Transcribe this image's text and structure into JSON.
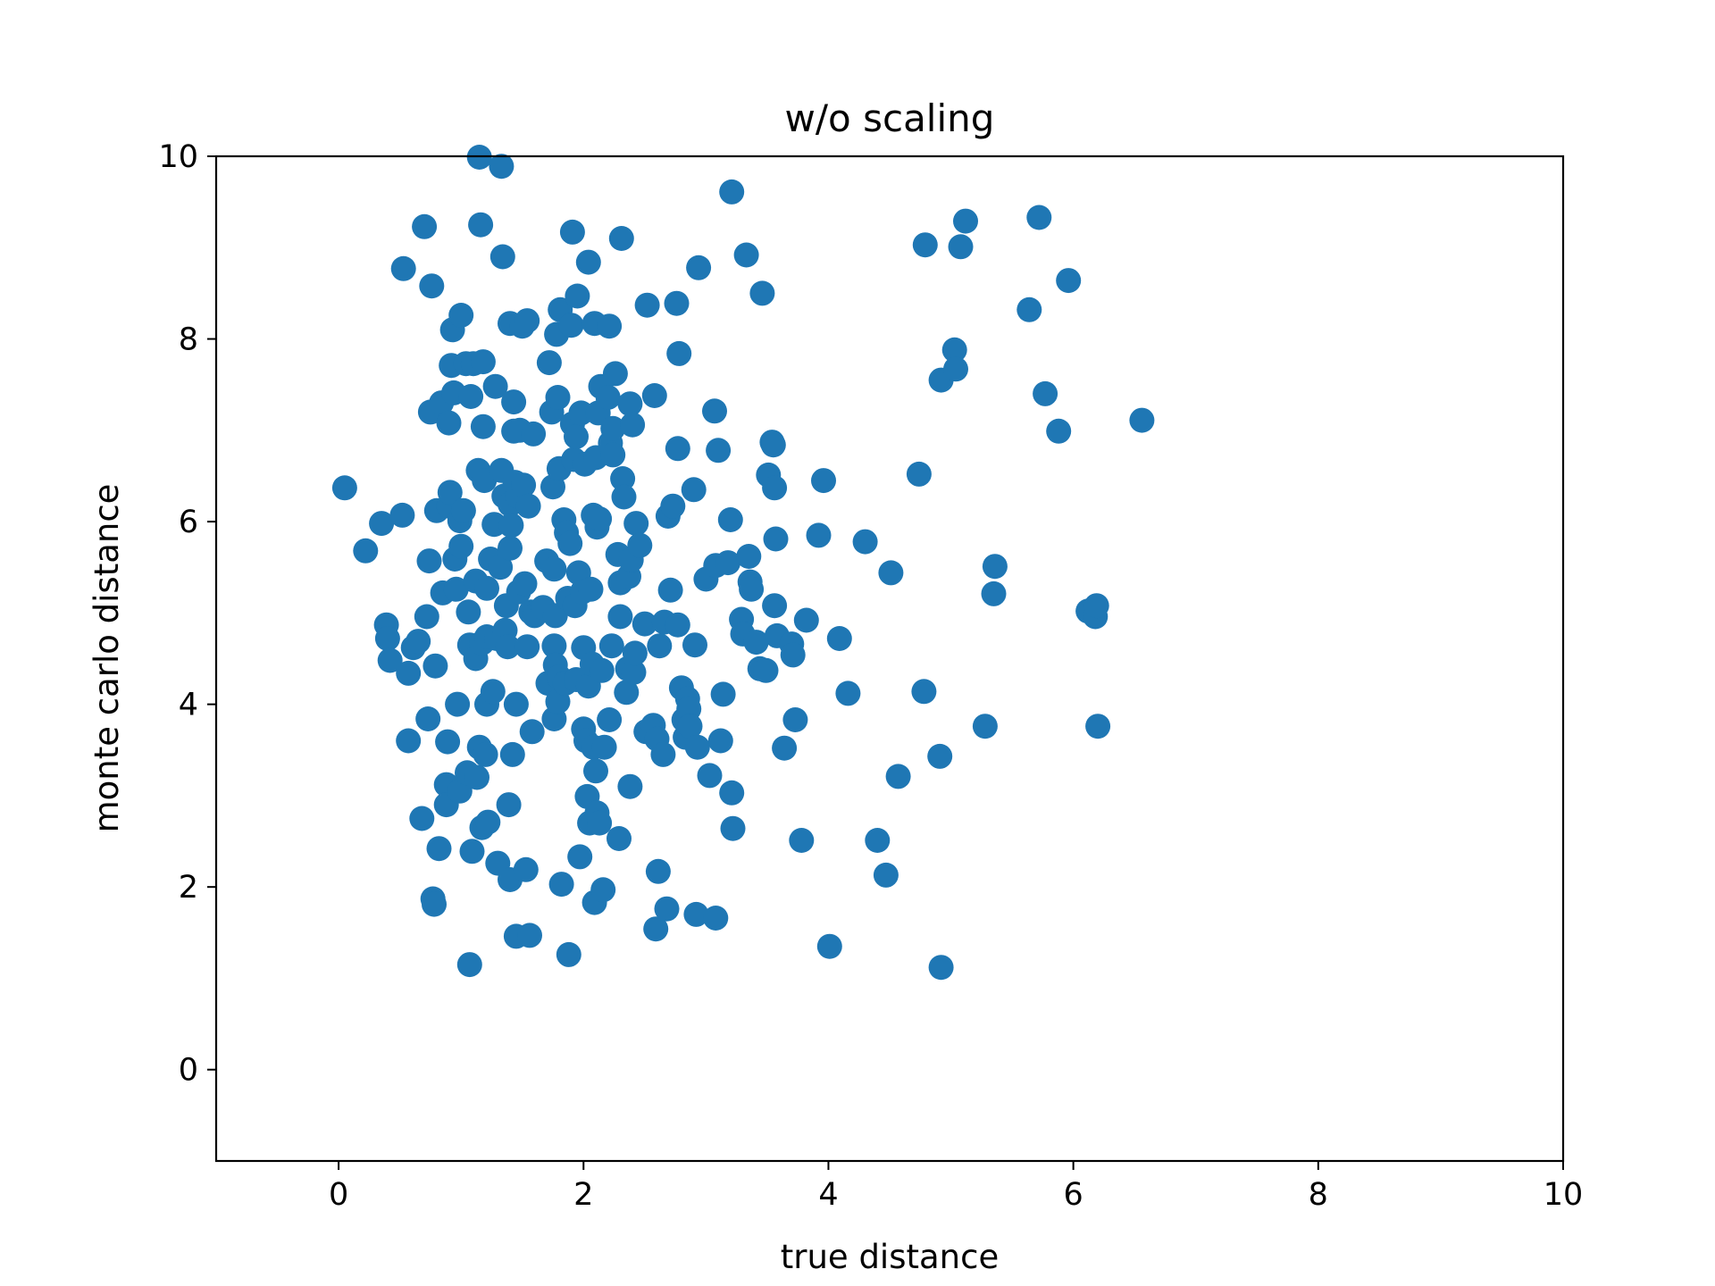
{
  "chart_data": {
    "type": "scatter",
    "title": "w/o scaling",
    "xlabel": "true distance",
    "ylabel": "monte carlo distance",
    "xlim": [
      -1,
      10
    ],
    "ylim": [
      -1,
      10
    ],
    "xticks": [
      0,
      2,
      4,
      6,
      8,
      10
    ],
    "yticks": [
      0,
      2,
      4,
      6,
      8,
      10
    ],
    "grid": false,
    "marker_color": "#1f77b4",
    "series": [
      {
        "points": [
          [
            0.05,
            6.37
          ],
          [
            0.22,
            5.68
          ],
          [
            0.35,
            5.98
          ],
          [
            0.39,
            4.87
          ],
          [
            0.4,
            4.72
          ],
          [
            0.42,
            4.48
          ],
          [
            0.52,
            6.07
          ],
          [
            0.53,
            8.77
          ],
          [
            0.57,
            4.34
          ],
          [
            0.57,
            3.6
          ],
          [
            0.61,
            4.62
          ],
          [
            0.65,
            4.69
          ],
          [
            0.68,
            2.75
          ],
          [
            0.7,
            9.23
          ],
          [
            0.72,
            4.96
          ],
          [
            0.73,
            3.84
          ],
          [
            0.74,
            5.57
          ],
          [
            0.75,
            7.2
          ],
          [
            0.76,
            8.58
          ],
          [
            0.77,
            1.87
          ],
          [
            0.78,
            1.81
          ],
          [
            0.79,
            4.42
          ],
          [
            0.8,
            6.12
          ],
          [
            0.82,
            2.42
          ],
          [
            0.84,
            7.3
          ],
          [
            0.85,
            5.22
          ],
          [
            0.88,
            3.12
          ],
          [
            0.88,
            2.9
          ],
          [
            0.89,
            3.59
          ],
          [
            0.9,
            7.08
          ],
          [
            0.9,
            6.17
          ],
          [
            0.91,
            6.32
          ],
          [
            0.92,
            7.71
          ],
          [
            0.93,
            8.1
          ],
          [
            0.94,
            7.41
          ],
          [
            0.95,
            5.59
          ],
          [
            0.96,
            5.26
          ],
          [
            0.97,
            4.0
          ],
          [
            0.99,
            6.01
          ],
          [
            0.99,
            3.05
          ],
          [
            1.0,
            8.26
          ],
          [
            1.0,
            5.73
          ],
          [
            1.02,
            6.12
          ],
          [
            1.04,
            7.73
          ],
          [
            1.05,
            3.25
          ],
          [
            1.06,
            5.01
          ],
          [
            1.07,
            4.65
          ],
          [
            1.07,
            1.15
          ],
          [
            1.08,
            7.37
          ],
          [
            1.09,
            2.39
          ],
          [
            1.1,
            7.73
          ],
          [
            1.12,
            5.35
          ],
          [
            1.12,
            4.5
          ],
          [
            1.13,
            3.2
          ],
          [
            1.14,
            6.56
          ],
          [
            1.15,
            9.99
          ],
          [
            1.15,
            3.53
          ],
          [
            1.16,
            9.25
          ],
          [
            1.17,
            4.67
          ],
          [
            1.17,
            2.65
          ],
          [
            1.18,
            7.75
          ],
          [
            1.18,
            7.04
          ],
          [
            1.19,
            6.45
          ],
          [
            1.2,
            3.45
          ],
          [
            1.21,
            5.27
          ],
          [
            1.21,
            4.74
          ],
          [
            1.21,
            4.0
          ],
          [
            1.22,
            2.71
          ],
          [
            1.24,
            5.59
          ],
          [
            1.26,
            4.14
          ],
          [
            1.27,
            5.97
          ],
          [
            1.28,
            7.48
          ],
          [
            1.29,
            4.72
          ],
          [
            1.3,
            2.26
          ],
          [
            1.32,
            5.5
          ],
          [
            1.33,
            6.56
          ],
          [
            1.33,
            9.89
          ],
          [
            1.34,
            8.9
          ],
          [
            1.35,
            6.28
          ],
          [
            1.36,
            4.81
          ],
          [
            1.37,
            5.08
          ],
          [
            1.38,
            4.63
          ],
          [
            1.39,
            2.9
          ],
          [
            1.4,
            6.19
          ],
          [
            1.4,
            5.71
          ],
          [
            1.4,
            8.17
          ],
          [
            1.4,
            2.08
          ],
          [
            1.41,
            5.96
          ],
          [
            1.42,
            3.45
          ],
          [
            1.43,
            7.31
          ],
          [
            1.43,
            6.99
          ],
          [
            1.44,
            6.43
          ],
          [
            1.45,
            4.0
          ],
          [
            1.45,
            1.46
          ],
          [
            1.46,
            6.28
          ],
          [
            1.47,
            5.23
          ],
          [
            1.48,
            7.0
          ],
          [
            1.5,
            8.14
          ],
          [
            1.51,
            6.4
          ],
          [
            1.52,
            5.32
          ],
          [
            1.53,
            2.19
          ],
          [
            1.54,
            4.63
          ],
          [
            1.54,
            8.2
          ],
          [
            1.55,
            6.17
          ],
          [
            1.56,
            1.47
          ],
          [
            1.57,
            5.01
          ],
          [
            1.58,
            3.7
          ],
          [
            1.59,
            6.96
          ],
          [
            1.6,
            4.97
          ],
          [
            1.67,
            5.06
          ],
          [
            1.7,
            5.57
          ],
          [
            1.71,
            4.23
          ],
          [
            1.72,
            7.74
          ],
          [
            1.74,
            7.2
          ],
          [
            1.75,
            6.38
          ],
          [
            1.76,
            5.48
          ],
          [
            1.76,
            4.64
          ],
          [
            1.76,
            3.84
          ],
          [
            1.77,
            4.97
          ],
          [
            1.77,
            4.43
          ],
          [
            1.78,
            8.05
          ],
          [
            1.79,
            7.36
          ],
          [
            1.79,
            4.03
          ],
          [
            1.8,
            6.58
          ],
          [
            1.8,
            4.3
          ],
          [
            1.81,
            8.32
          ],
          [
            1.82,
            2.03
          ],
          [
            1.84,
            6.02
          ],
          [
            1.85,
            4.23
          ],
          [
            1.86,
            5.88
          ],
          [
            1.87,
            5.16
          ],
          [
            1.88,
            1.26
          ],
          [
            1.89,
            5.76
          ],
          [
            1.9,
            8.15
          ],
          [
            1.91,
            9.17
          ],
          [
            1.91,
            7.07
          ],
          [
            1.92,
            6.68
          ],
          [
            1.93,
            5.08
          ],
          [
            1.94,
            4.27
          ],
          [
            1.94,
            6.93
          ],
          [
            1.95,
            8.47
          ],
          [
            1.96,
            5.44
          ],
          [
            1.97,
            2.33
          ],
          [
            1.98,
            7.19
          ],
          [
            1.99,
            5.23
          ],
          [
            2.0,
            4.62
          ],
          [
            2.0,
            3.73
          ],
          [
            2.01,
            6.63
          ],
          [
            2.02,
            3.6
          ],
          [
            2.03,
            2.99
          ],
          [
            2.04,
            4.2
          ],
          [
            2.04,
            8.84
          ],
          [
            2.05,
            2.7
          ],
          [
            2.06,
            5.26
          ],
          [
            2.07,
            4.44
          ],
          [
            2.08,
            6.07
          ],
          [
            2.08,
            3.53
          ],
          [
            2.09,
            1.83
          ],
          [
            2.09,
            8.17
          ],
          [
            2.1,
            6.7
          ],
          [
            2.1,
            3.27
          ],
          [
            2.11,
            5.94
          ],
          [
            2.11,
            2.81
          ],
          [
            2.12,
            7.19
          ],
          [
            2.13,
            6.03
          ],
          [
            2.13,
            2.7
          ],
          [
            2.14,
            7.48
          ],
          [
            2.15,
            4.37
          ],
          [
            2.16,
            1.97
          ],
          [
            2.17,
            3.53
          ],
          [
            2.2,
            7.36
          ],
          [
            2.21,
            3.83
          ],
          [
            2.21,
            8.14
          ],
          [
            2.22,
            6.86
          ],
          [
            2.23,
            4.64
          ],
          [
            2.24,
            7.02
          ],
          [
            2.24,
            6.73
          ],
          [
            2.26,
            7.62
          ],
          [
            2.28,
            5.64
          ],
          [
            2.29,
            2.53
          ],
          [
            2.3,
            5.33
          ],
          [
            2.3,
            4.96
          ],
          [
            2.31,
            9.1
          ],
          [
            2.32,
            6.47
          ],
          [
            2.33,
            6.27
          ],
          [
            2.35,
            4.13
          ],
          [
            2.36,
            4.39
          ],
          [
            2.37,
            5.4
          ],
          [
            2.38,
            3.1
          ],
          [
            2.38,
            7.29
          ],
          [
            2.39,
            5.58
          ],
          [
            2.4,
            7.06
          ],
          [
            2.41,
            4.35
          ],
          [
            2.42,
            4.56
          ],
          [
            2.43,
            5.98
          ],
          [
            2.46,
            5.74
          ],
          [
            2.5,
            4.88
          ],
          [
            2.51,
            3.7
          ],
          [
            2.52,
            8.37
          ],
          [
            2.57,
            3.77
          ],
          [
            2.58,
            7.38
          ],
          [
            2.59,
            1.54
          ],
          [
            2.6,
            3.62
          ],
          [
            2.61,
            2.17
          ],
          [
            2.62,
            4.64
          ],
          [
            2.65,
            3.45
          ],
          [
            2.66,
            4.9
          ],
          [
            2.68,
            1.76
          ],
          [
            2.69,
            6.06
          ],
          [
            2.71,
            5.25
          ],
          [
            2.73,
            6.17
          ],
          [
            2.76,
            8.39
          ],
          [
            2.77,
            6.8
          ],
          [
            2.77,
            4.87
          ],
          [
            2.78,
            7.84
          ],
          [
            2.8,
            4.18
          ],
          [
            2.82,
            3.83
          ],
          [
            2.83,
            3.64
          ],
          [
            2.85,
            4.06
          ],
          [
            2.86,
            3.95
          ],
          [
            2.87,
            3.76
          ],
          [
            2.9,
            6.35
          ],
          [
            2.91,
            4.65
          ],
          [
            2.92,
            1.7
          ],
          [
            2.93,
            3.53
          ],
          [
            2.94,
            8.78
          ],
          [
            3.0,
            5.37
          ],
          [
            3.03,
            3.22
          ],
          [
            3.07,
            7.21
          ],
          [
            3.08,
            5.52
          ],
          [
            3.08,
            1.66
          ],
          [
            3.1,
            6.78
          ],
          [
            3.12,
            3.6
          ],
          [
            3.14,
            4.11
          ],
          [
            3.18,
            5.55
          ],
          [
            3.2,
            6.02
          ],
          [
            3.21,
            9.61
          ],
          [
            3.21,
            3.03
          ],
          [
            3.22,
            2.64
          ],
          [
            3.29,
            4.93
          ],
          [
            3.3,
            4.77
          ],
          [
            3.33,
            8.92
          ],
          [
            3.35,
            5.62
          ],
          [
            3.36,
            5.34
          ],
          [
            3.37,
            5.26
          ],
          [
            3.41,
            4.68
          ],
          [
            3.44,
            4.39
          ],
          [
            3.46,
            8.5
          ],
          [
            3.49,
            4.37
          ],
          [
            3.51,
            6.51
          ],
          [
            3.54,
            6.87
          ],
          [
            3.55,
            6.84
          ],
          [
            3.56,
            6.37
          ],
          [
            3.56,
            5.08
          ],
          [
            3.57,
            5.81
          ],
          [
            3.58,
            4.75
          ],
          [
            3.64,
            3.52
          ],
          [
            3.7,
            4.66
          ],
          [
            3.71,
            4.54
          ],
          [
            3.73,
            3.83
          ],
          [
            3.78,
            2.51
          ],
          [
            3.82,
            4.92
          ],
          [
            3.92,
            5.85
          ],
          [
            3.96,
            6.45
          ],
          [
            4.01,
            1.35
          ],
          [
            4.09,
            4.72
          ],
          [
            4.16,
            4.12
          ],
          [
            4.3,
            5.78
          ],
          [
            4.4,
            2.51
          ],
          [
            4.47,
            2.13
          ],
          [
            4.51,
            5.44
          ],
          [
            4.57,
            3.21
          ],
          [
            4.74,
            6.52
          ],
          [
            4.78,
            4.14
          ],
          [
            4.79,
            9.03
          ],
          [
            4.91,
            3.43
          ],
          [
            4.92,
            7.55
          ],
          [
            4.92,
            1.12
          ],
          [
            5.03,
            7.88
          ],
          [
            5.04,
            7.67
          ],
          [
            5.08,
            9.01
          ],
          [
            5.12,
            9.29
          ],
          [
            5.28,
            3.76
          ],
          [
            5.35,
            5.21
          ],
          [
            5.36,
            5.51
          ],
          [
            5.64,
            8.32
          ],
          [
            5.72,
            9.33
          ],
          [
            5.77,
            7.4
          ],
          [
            5.88,
            6.99
          ],
          [
            5.96,
            8.64
          ],
          [
            6.12,
            5.02
          ],
          [
            6.18,
            4.96
          ],
          [
            6.19,
            5.08
          ],
          [
            6.2,
            3.76
          ],
          [
            6.56,
            7.11
          ]
        ]
      }
    ]
  }
}
